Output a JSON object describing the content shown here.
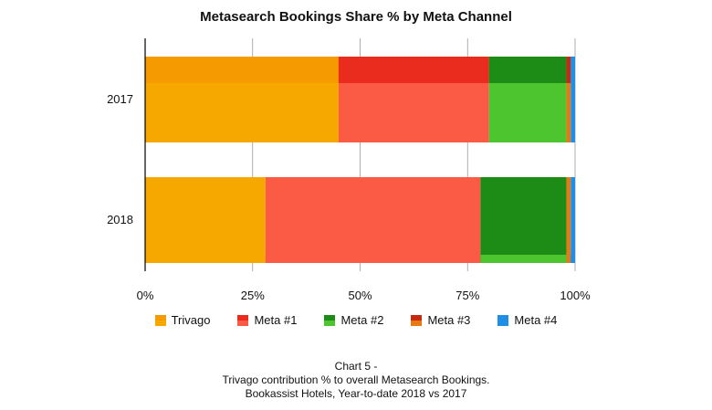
{
  "chart_data": {
    "type": "bar",
    "orientation": "horizontal",
    "stacked": true,
    "title": "Metasearch Bookings Share % by Meta Channel",
    "categories": [
      "2017",
      "2018"
    ],
    "series": [
      {
        "name": "Trivago",
        "values": [
          45,
          28
        ],
        "color": "#f7a800",
        "top_color": "#f59a00"
      },
      {
        "name": "Meta #1",
        "values": [
          35,
          50
        ],
        "color": "#fb5a45",
        "top_color": "#ea2c1e"
      },
      {
        "name": "Meta #2",
        "values": [
          18,
          20
        ],
        "color": "#4dc52f",
        "top_color": "#1d8c16"
      },
      {
        "name": "Meta #3",
        "values": [
          1,
          1
        ],
        "color": "#e87814",
        "top_color": "#c72a12"
      },
      {
        "name": "Meta #4",
        "values": [
          1,
          1
        ],
        "color": "#1f8fe6",
        "top_color": "#1f8fe6"
      }
    ],
    "xlim": [
      0,
      100
    ],
    "x_ticks": [
      "0%",
      "25%",
      "50%",
      "75%",
      "100%"
    ],
    "grid": true,
    "legend_position": "bottom"
  },
  "caption": {
    "line1": "Chart 5 -",
    "line2": "Trivago contribution % to overall Metasearch Bookings.",
    "line3": "Bookassist Hotels, Year-to-date 2018 vs 2017"
  }
}
